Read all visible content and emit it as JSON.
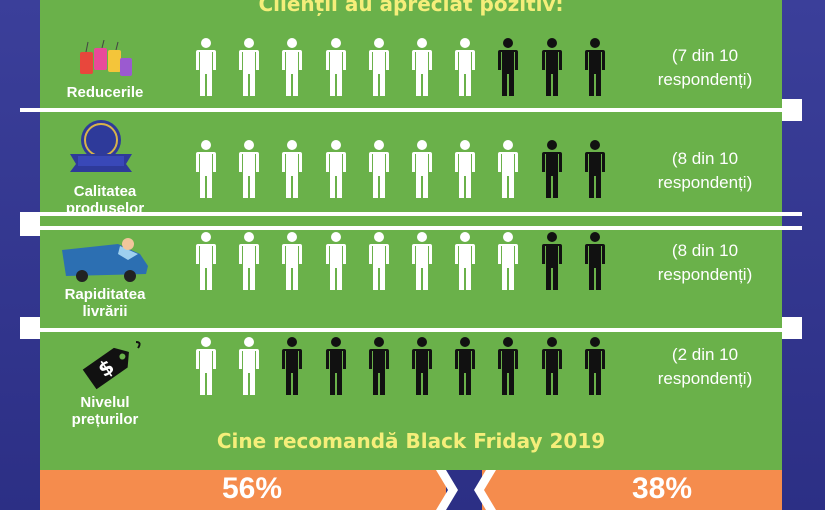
{
  "title": "Clienții au apreciat pozitiv:",
  "subtitle": "Cine recomandă Black Friday 2019",
  "colors": {
    "panel": "#6ab14a",
    "positive": "#ffffff",
    "negative": "#111111",
    "accent": "#f5ee7a",
    "bar": "#f58c4d"
  },
  "chart_data": {
    "type": "pictogram",
    "title": "Clienții au apreciat pozitiv:",
    "total_per_row": 10,
    "rows": [
      {
        "label": "Reducerile",
        "icon": "sale-tags-icon",
        "positive": 7,
        "note_line1": "(7 din 10",
        "note_line2": "respondenți)"
      },
      {
        "label": "Calitatea produselor",
        "icon": "high-quality-badge-icon",
        "positive": 8,
        "note_line1": "(8 din 10",
        "note_line2": "respondenți)"
      },
      {
        "label": "Rapiditatea livrării",
        "icon": "delivery-van-icon",
        "positive": 8,
        "note_line1": "(8 din 10",
        "note_line2": "respondenți)"
      },
      {
        "label": "Nivelul prețurilor",
        "icon": "price-tag-icon",
        "positive": 2,
        "note_line1": "(2 din 10",
        "note_line2": "respondenți)"
      }
    ],
    "recommend": {
      "title": "Cine recomandă Black Friday 2019",
      "left_value": "56%",
      "right_value": "38%"
    }
  }
}
